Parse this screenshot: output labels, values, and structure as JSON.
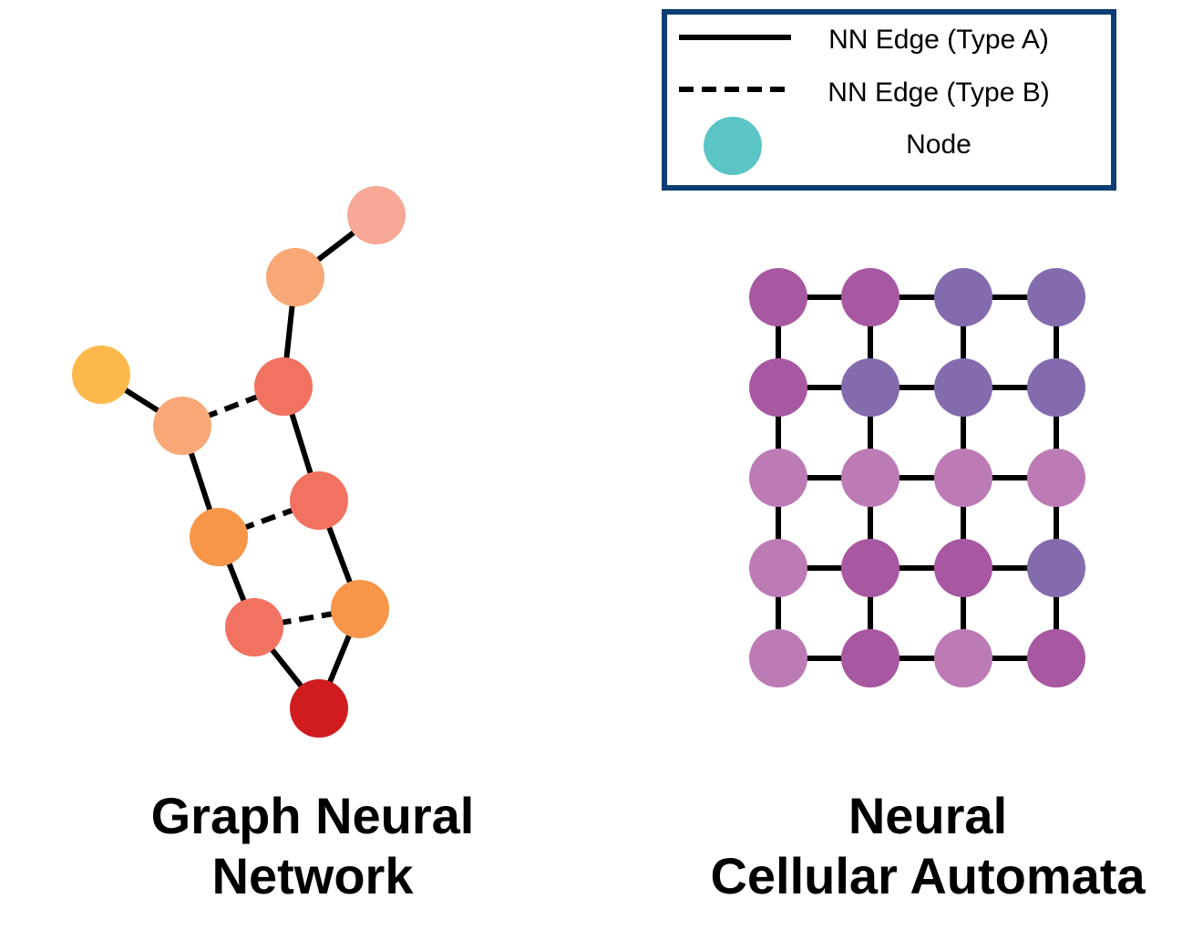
{
  "legend": {
    "items": [
      {
        "label": "NN Edge (Type A)",
        "symbol": "solid-line"
      },
      {
        "label": "NN Edge (Type B)",
        "symbol": "dashed-line"
      },
      {
        "label": "Node",
        "symbol": "circle",
        "color": "#5bc5c6"
      }
    ],
    "border_color": "#0b3f73"
  },
  "colors": {
    "edge": "#000000",
    "node_legend": "#5bc5c6"
  },
  "gnn": {
    "title_line1": "Graph Neural",
    "title_line2": "Network",
    "nodes": [
      {
        "id": "n1",
        "color": "#f7a896"
      },
      {
        "id": "n2",
        "color": "#f7a876"
      },
      {
        "id": "n3",
        "color": "#f27261"
      },
      {
        "id": "n4",
        "color": "#fdb94b"
      },
      {
        "id": "n5",
        "color": "#f7a876"
      },
      {
        "id": "n6",
        "color": "#f27261"
      },
      {
        "id": "n7",
        "color": "#f79548"
      },
      {
        "id": "n8",
        "color": "#f27261"
      },
      {
        "id": "n9",
        "color": "#f79548"
      },
      {
        "id": "n10",
        "color": "#d01c1f"
      }
    ],
    "edges": [
      {
        "from": "n1",
        "to": "n2",
        "type": "A"
      },
      {
        "from": "n2",
        "to": "n3",
        "type": "A"
      },
      {
        "from": "n4",
        "to": "n5",
        "type": "A"
      },
      {
        "from": "n5",
        "to": "n3",
        "type": "B"
      },
      {
        "from": "n3",
        "to": "n6",
        "type": "A"
      },
      {
        "from": "n5",
        "to": "n7",
        "type": "A"
      },
      {
        "from": "n7",
        "to": "n6",
        "type": "B"
      },
      {
        "from": "n6",
        "to": "n9",
        "type": "A"
      },
      {
        "from": "n7",
        "to": "n8",
        "type": "A"
      },
      {
        "from": "n8",
        "to": "n9",
        "type": "B"
      },
      {
        "from": "n8",
        "to": "n10",
        "type": "A"
      },
      {
        "from": "n9",
        "to": "n10",
        "type": "A"
      }
    ]
  },
  "nca": {
    "title_line1": "Neural",
    "title_line2": "Cellular Automata",
    "rows": 5,
    "cols": 4,
    "palette": {
      "a": "#a857a1",
      "b": "#836bae",
      "c": "#bd7bb6"
    },
    "grid": [
      [
        "a",
        "a",
        "b",
        "b"
      ],
      [
        "a",
        "b",
        "b",
        "b"
      ],
      [
        "c",
        "c",
        "c",
        "c"
      ],
      [
        "c",
        "a",
        "a",
        "b"
      ],
      [
        "c",
        "a",
        "c",
        "a"
      ]
    ]
  }
}
